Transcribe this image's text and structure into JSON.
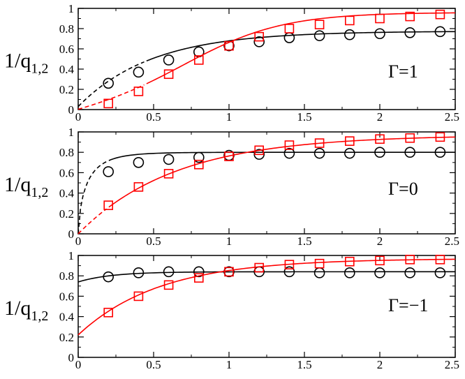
{
  "chart_data": [
    {
      "type": "scatter",
      "ylabel_main": "1/q",
      "ylabel_sub": "1,2",
      "annotation": "Γ=1",
      "xlim": [
        0,
        2.5
      ],
      "ylim": [
        0,
        1
      ],
      "xticks": [
        "0",
        "0.5",
        "1",
        "1.5",
        "2",
        "2.5"
      ],
      "yticks": [
        "0",
        "0.2",
        "0.4",
        "0.6",
        "0.8",
        "1"
      ],
      "series": [
        {
          "marker": "circle",
          "color": "#000000",
          "x": [
            0.2,
            0.4,
            0.6,
            0.8,
            1.0,
            1.2,
            1.4,
            1.6,
            1.8,
            2.0,
            2.2,
            2.4
          ],
          "y": [
            0.26,
            0.37,
            0.49,
            0.57,
            0.63,
            0.67,
            0.71,
            0.73,
            0.74,
            0.75,
            0.76,
            0.77
          ],
          "curve": {
            "a": 0.03,
            "b": 0.775,
            "k": 2.05
          },
          "dashed_until": 0.45
        },
        {
          "marker": "square",
          "color": "#ff0000",
          "x": [
            0.2,
            0.4,
            0.6,
            0.8,
            1.0,
            1.2,
            1.4,
            1.6,
            1.8,
            2.0,
            2.2,
            2.4
          ],
          "y": [
            0.06,
            0.18,
            0.35,
            0.49,
            0.63,
            0.72,
            0.8,
            0.84,
            0.88,
            0.9,
            0.92,
            0.94
          ],
          "curve": {
            "logistic": true,
            "L": 0.96,
            "k": 3.1,
            "x0": 0.72,
            "off": 0.09
          },
          "dashed_until": 0.45
        }
      ]
    },
    {
      "type": "scatter",
      "ylabel_main": "1/q",
      "ylabel_sub": "1,2",
      "annotation": "Γ=0",
      "xlim": [
        0,
        2.5
      ],
      "ylim": [
        0,
        1
      ],
      "xticks": [
        "0",
        "0.5",
        "1",
        "1.5",
        "2",
        "2.5"
      ],
      "yticks": [
        "0",
        "0.2",
        "0.4",
        "0.6",
        "0.8",
        "1"
      ],
      "series": [
        {
          "marker": "circle",
          "color": "#000000",
          "x": [
            0.2,
            0.4,
            0.6,
            0.8,
            1.0,
            1.2,
            1.4,
            1.6,
            1.8,
            2.0,
            2.2,
            2.4
          ],
          "y": [
            0.61,
            0.7,
            0.73,
            0.75,
            0.77,
            0.78,
            0.79,
            0.79,
            0.79,
            0.8,
            0.8,
            0.8
          ],
          "curve": {
            "a": 0.0,
            "b": 0.8,
            "k": 7.0,
            "p": 0.7
          },
          "dashed_until": 0.2
        },
        {
          "marker": "square",
          "color": "#ff0000",
          "x": [
            0.2,
            0.4,
            0.6,
            0.8,
            1.0,
            1.2,
            1.4,
            1.6,
            1.8,
            2.0,
            2.2,
            2.4
          ],
          "y": [
            0.28,
            0.46,
            0.59,
            0.68,
            0.76,
            0.82,
            0.87,
            0.89,
            0.91,
            0.93,
            0.94,
            0.95
          ],
          "curve": {
            "a": 0.0,
            "b": 0.97,
            "k": 1.55
          },
          "dashed_until": 0.2
        }
      ]
    },
    {
      "type": "scatter",
      "ylabel_main": "1/q",
      "ylabel_sub": "1,2",
      "annotation": "Γ=−1",
      "xlim": [
        0,
        2.5
      ],
      "ylim": [
        0,
        1
      ],
      "xticks": [
        "0",
        "0.5",
        "1",
        "1.5",
        "2",
        "2.5"
      ],
      "yticks": [
        "0",
        "0.2",
        "0.4",
        "0.6",
        "0.8",
        "1"
      ],
      "series": [
        {
          "marker": "circle",
          "color": "#000000",
          "x": [
            0.2,
            0.4,
            0.6,
            0.8,
            1.0,
            1.2,
            1.4,
            1.6,
            1.8,
            2.0,
            2.2,
            2.4
          ],
          "y": [
            0.79,
            0.83,
            0.84,
            0.84,
            0.84,
            0.84,
            0.84,
            0.83,
            0.83,
            0.83,
            0.83,
            0.83
          ],
          "curve": {
            "a": 0.74,
            "b": 0.84,
            "k": 4.5
          },
          "dashed_until": 0
        },
        {
          "marker": "square",
          "color": "#ff0000",
          "x": [
            0.2,
            0.4,
            0.6,
            0.8,
            1.0,
            1.2,
            1.4,
            1.6,
            1.8,
            2.0,
            2.2,
            2.4
          ],
          "y": [
            0.44,
            0.6,
            0.71,
            0.78,
            0.84,
            0.88,
            0.91,
            0.92,
            0.94,
            0.95,
            0.96,
            0.96
          ],
          "curve": {
            "a": 0.22,
            "b": 0.97,
            "k": 1.85
          },
          "dashed_until": 0
        }
      ]
    }
  ]
}
